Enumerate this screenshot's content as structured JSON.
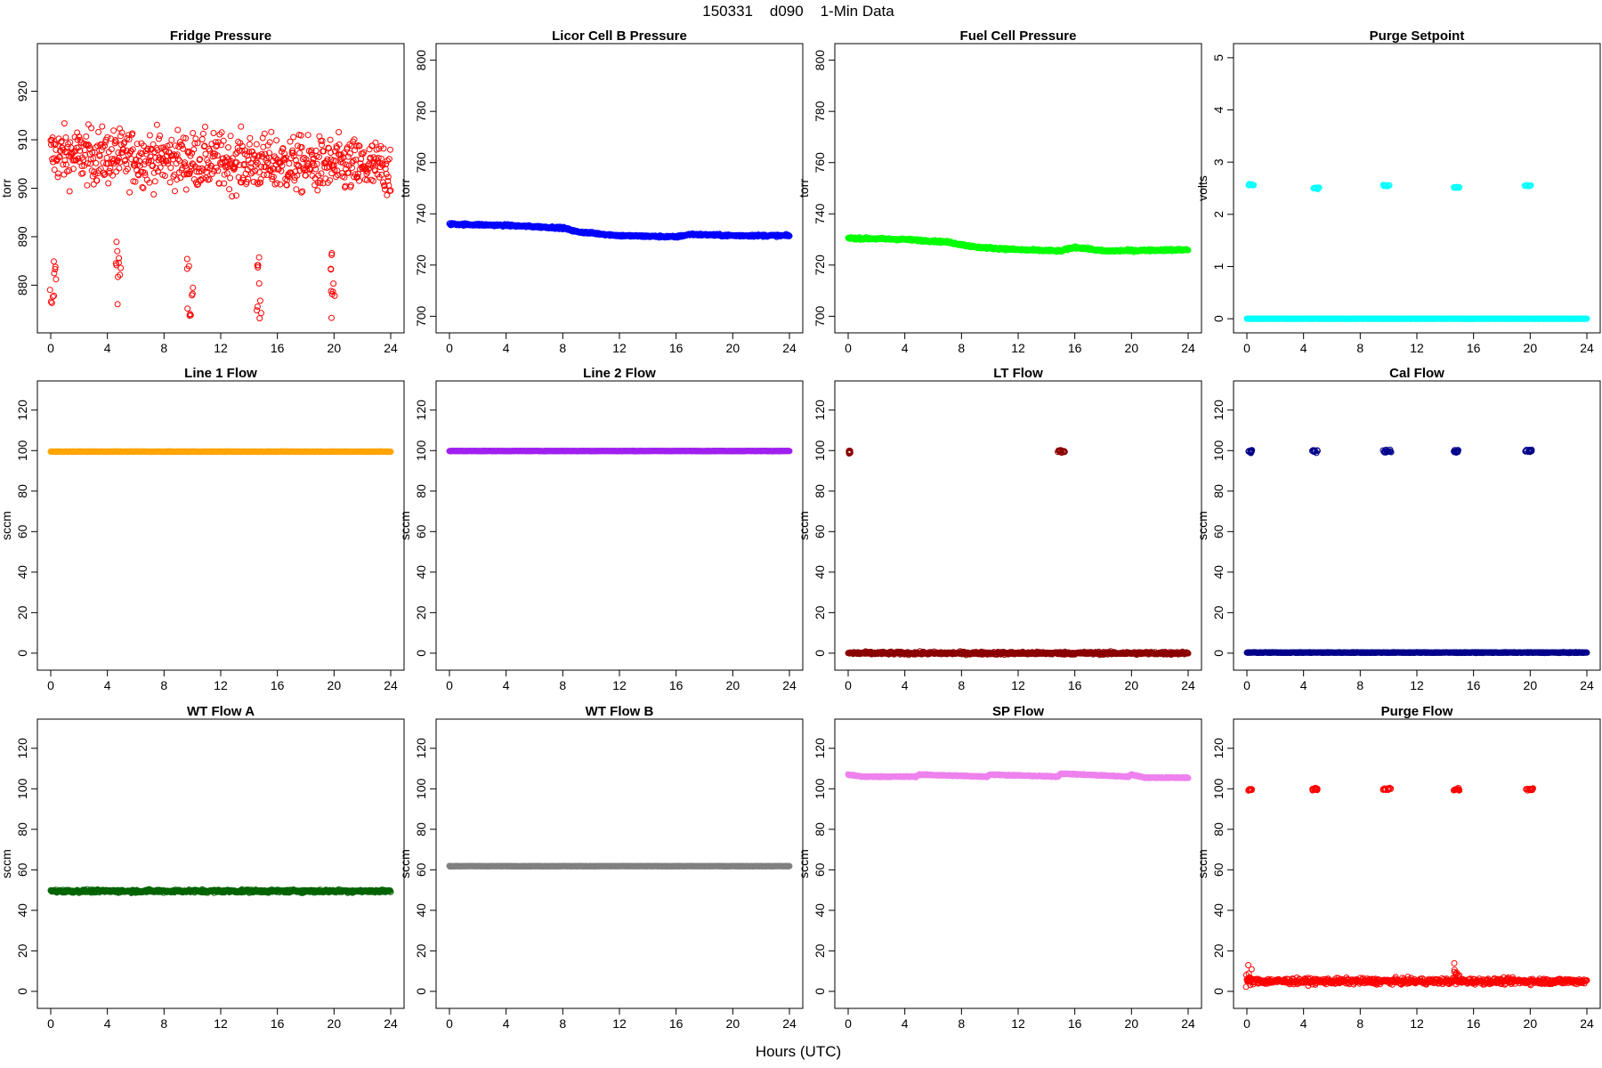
{
  "figure": {
    "title": "150331    d090    1-Min Data",
    "xlabel": "Hours (UTC)"
  },
  "chart_data": [
    {
      "type": "scatter",
      "title": "Fridge Pressure",
      "ylabel": "torr",
      "color": "#ff0000",
      "xlim": [
        0,
        24
      ],
      "ylim": [
        872,
        928
      ],
      "xticks": [
        0,
        4,
        8,
        12,
        16,
        20,
        24
      ],
      "yticks": [
        880,
        890,
        900,
        910,
        920
      ],
      "pattern": {
        "kind": "noise",
        "base": 907,
        "amp": 7,
        "slope": -0.12,
        "clusters": [
          {
            "x": 0.15,
            "y": 878,
            "spread": 7
          },
          {
            "x": 4.8,
            "y": 882,
            "spread": 7
          },
          {
            "x": 9.8,
            "y": 880,
            "spread": 7
          },
          {
            "x": 14.7,
            "y": 880,
            "spread": 7
          },
          {
            "x": 19.8,
            "y": 880,
            "spread": 7
          }
        ]
      }
    },
    {
      "type": "scatter",
      "title": "Licor Cell B Pressure",
      "ylabel": "torr",
      "color": "#0000ff",
      "xlim": [
        0,
        24
      ],
      "ylim": [
        697,
        803
      ],
      "xticks": [
        0,
        4,
        8,
        12,
        16,
        20,
        24
      ],
      "yticks": [
        700,
        720,
        740,
        760,
        780,
        800
      ],
      "pattern": {
        "kind": "trend",
        "points": [
          [
            0,
            736
          ],
          [
            4,
            735.5
          ],
          [
            8,
            734.5
          ],
          [
            9,
            733
          ],
          [
            12,
            731.5
          ],
          [
            16,
            731
          ],
          [
            17,
            732
          ],
          [
            20,
            731.5
          ],
          [
            24,
            731.5
          ]
        ],
        "amp": 0.7
      }
    },
    {
      "type": "scatter",
      "title": "Fuel Cell Pressure",
      "ylabel": "torr",
      "color": "#00ff00",
      "xlim": [
        0,
        24
      ],
      "ylim": [
        697,
        803
      ],
      "xticks": [
        0,
        4,
        8,
        12,
        16,
        20,
        24
      ],
      "yticks": [
        700,
        720,
        740,
        760,
        780,
        800
      ],
      "pattern": {
        "kind": "trend",
        "points": [
          [
            0,
            730.5
          ],
          [
            4,
            730
          ],
          [
            7,
            729
          ],
          [
            9,
            727
          ],
          [
            12,
            726
          ],
          [
            15,
            725.5
          ],
          [
            16,
            727
          ],
          [
            18,
            725.5
          ],
          [
            24,
            726
          ]
        ],
        "amp": 0.7
      }
    },
    {
      "type": "scatter",
      "title": "Purge Setpoint",
      "ylabel": "volts",
      "color": "#00ffff",
      "xlim": [
        0,
        24
      ],
      "ylim": [
        -0.1,
        5.1
      ],
      "xticks": [
        0,
        4,
        8,
        12,
        16,
        20,
        24
      ],
      "yticks": [
        0,
        1,
        2,
        3,
        4,
        5
      ],
      "pattern": {
        "kind": "flat_with_pulses",
        "base": 0,
        "amp": 0.005,
        "pulses": [
          {
            "x": 0.1,
            "w": 0.4,
            "y": 2.57
          },
          {
            "x": 4.6,
            "w": 0.5,
            "y": 2.5
          },
          {
            "x": 9.6,
            "w": 0.5,
            "y": 2.55
          },
          {
            "x": 14.6,
            "w": 0.4,
            "y": 2.52
          },
          {
            "x": 19.6,
            "w": 0.5,
            "y": 2.55
          }
        ]
      }
    },
    {
      "type": "scatter",
      "title": "Line 1 Flow",
      "ylabel": "sccm",
      "color": "#ffa500",
      "xlim": [
        0,
        24
      ],
      "ylim": [
        -4,
        130
      ],
      "xticks": [
        0,
        4,
        8,
        12,
        16,
        20,
        24
      ],
      "yticks": [
        0,
        20,
        40,
        60,
        80,
        100,
        120
      ],
      "pattern": {
        "kind": "flat",
        "base": 99.5,
        "amp": 0.2
      }
    },
    {
      "type": "scatter",
      "title": "Line 2 Flow",
      "ylabel": "sccm",
      "color": "#a020f0",
      "xlim": [
        0,
        24
      ],
      "ylim": [
        -4,
        130
      ],
      "xticks": [
        0,
        4,
        8,
        12,
        16,
        20,
        24
      ],
      "yticks": [
        0,
        20,
        40,
        60,
        80,
        100,
        120
      ],
      "pattern": {
        "kind": "flat",
        "base": 99.8,
        "amp": 0.2
      }
    },
    {
      "type": "scatter",
      "title": "LT Flow",
      "ylabel": "sccm",
      "color": "#8b0000",
      "xlim": [
        0,
        24
      ],
      "ylim": [
        -4,
        130
      ],
      "xticks": [
        0,
        4,
        8,
        12,
        16,
        20,
        24
      ],
      "yticks": [
        0,
        20,
        40,
        60,
        80,
        100,
        120
      ],
      "pattern": {
        "kind": "flat_with_pulses",
        "base": 0,
        "amp": 1.2,
        "pulses": [
          {
            "x": 0.05,
            "w": 0.1,
            "y": 99.5
          },
          {
            "x": 14.8,
            "w": 0.5,
            "y": 99.5
          }
        ]
      }
    },
    {
      "type": "scatter",
      "title": "Cal Flow",
      "ylabel": "sccm",
      "color": "#00008b",
      "xlim": [
        0,
        24
      ],
      "ylim": [
        -4,
        130
      ],
      "xticks": [
        0,
        4,
        8,
        12,
        16,
        20,
        24
      ],
      "yticks": [
        0,
        20,
        40,
        60,
        80,
        100,
        120
      ],
      "pattern": {
        "kind": "flat_with_pulses",
        "base": 0.3,
        "amp": 0.3,
        "pulses": [
          {
            "x": 0.1,
            "w": 0.3,
            "y": 99.7
          },
          {
            "x": 4.6,
            "w": 0.4,
            "y": 99.7
          },
          {
            "x": 9.6,
            "w": 0.6,
            "y": 99.7
          },
          {
            "x": 14.6,
            "w": 0.4,
            "y": 99.7
          },
          {
            "x": 19.6,
            "w": 0.6,
            "y": 99.7
          }
        ]
      }
    },
    {
      "type": "scatter",
      "title": "WT Flow A",
      "ylabel": "sccm",
      "color": "#006400",
      "xlim": [
        0,
        24
      ],
      "ylim": [
        -4,
        130
      ],
      "xticks": [
        0,
        4,
        8,
        12,
        16,
        20,
        24
      ],
      "yticks": [
        0,
        20,
        40,
        60,
        80,
        100,
        120
      ],
      "pattern": {
        "kind": "flat",
        "base": 49.5,
        "amp": 1.3
      }
    },
    {
      "type": "scatter",
      "title": "WT Flow B",
      "ylabel": "sccm",
      "color": "#808080",
      "xlim": [
        0,
        24
      ],
      "ylim": [
        -4,
        130
      ],
      "xticks": [
        0,
        4,
        8,
        12,
        16,
        20,
        24
      ],
      "yticks": [
        0,
        20,
        40,
        60,
        80,
        100,
        120
      ],
      "pattern": {
        "kind": "flat",
        "base": 61.8,
        "amp": 0.2
      }
    },
    {
      "type": "scatter",
      "title": "SP Flow",
      "ylabel": "sccm",
      "color": "#ee82ee",
      "xlim": [
        0,
        24
      ],
      "ylim": [
        -4,
        130
      ],
      "xticks": [
        0,
        4,
        8,
        12,
        16,
        20,
        24
      ],
      "yticks": [
        0,
        20,
        40,
        60,
        80,
        100,
        120
      ],
      "pattern": {
        "kind": "trend",
        "points": [
          [
            0,
            107
          ],
          [
            1,
            106
          ],
          [
            4.8,
            106
          ],
          [
            5,
            107
          ],
          [
            9.8,
            106
          ],
          [
            10,
            107
          ],
          [
            14.8,
            106
          ],
          [
            15,
            107.5
          ],
          [
            19.8,
            106
          ],
          [
            20,
            107
          ],
          [
            21,
            105.5
          ],
          [
            24,
            105.5
          ]
        ],
        "amp": 0.4
      }
    },
    {
      "type": "scatter",
      "title": "Purge Flow",
      "ylabel": "sccm",
      "color": "#ff0000",
      "xlim": [
        0,
        24
      ],
      "ylim": [
        -4,
        130
      ],
      "xticks": [
        0,
        4,
        8,
        12,
        16,
        20,
        24
      ],
      "yticks": [
        0,
        20,
        40,
        60,
        80,
        100,
        120
      ],
      "pattern": {
        "kind": "flat_with_pulses",
        "base": 5,
        "amp": 2.5,
        "pulses": [
          {
            "x": 0.1,
            "w": 0.3,
            "y": 99.7
          },
          {
            "x": 4.6,
            "w": 0.4,
            "y": 99.8
          },
          {
            "x": 9.6,
            "w": 0.6,
            "y": 99.8
          },
          {
            "x": 14.6,
            "w": 0.4,
            "y": 99.8
          },
          {
            "x": 19.6,
            "w": 0.6,
            "y": 99.7
          }
        ],
        "clusters": [
          {
            "x": 0.1,
            "y": 7,
            "spread": 6
          },
          {
            "x": 14.8,
            "y": 10,
            "spread": 4
          }
        ]
      }
    }
  ]
}
